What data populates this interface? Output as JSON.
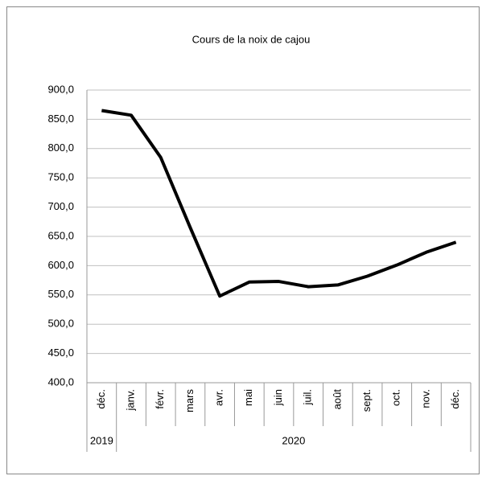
{
  "chart_data": {
    "type": "line",
    "title": "Cours de la noix de cajou",
    "category_groups": [
      {
        "label": "2019",
        "categories": [
          "déc."
        ]
      },
      {
        "label": "2020",
        "categories": [
          "janv.",
          "févr.",
          "mars",
          "avr.",
          "mai",
          "juin",
          "juil.",
          "août",
          "sept.",
          "oct.",
          "nov.",
          "déc."
        ]
      }
    ],
    "series": [
      {
        "color": "#000000",
        "values": [
          865,
          857,
          785,
          665,
          548,
          572,
          573,
          564,
          567,
          582,
          601,
          623,
          640
        ]
      }
    ],
    "ylim": [
      400,
      900
    ],
    "yticks": [
      {
        "value": 400,
        "label": "400,0"
      },
      {
        "value": 450,
        "label": "450,0"
      },
      {
        "value": 500,
        "label": "500,0"
      },
      {
        "value": 550,
        "label": "550,0"
      },
      {
        "value": 600,
        "label": "600,0"
      },
      {
        "value": 650,
        "label": "650,0"
      },
      {
        "value": 700,
        "label": "700,0"
      },
      {
        "value": 750,
        "label": "750,0"
      },
      {
        "value": 800,
        "label": "800,0"
      },
      {
        "value": 850,
        "label": "850,0"
      },
      {
        "value": 900,
        "label": "900,0"
      }
    ],
    "grid": true
  }
}
